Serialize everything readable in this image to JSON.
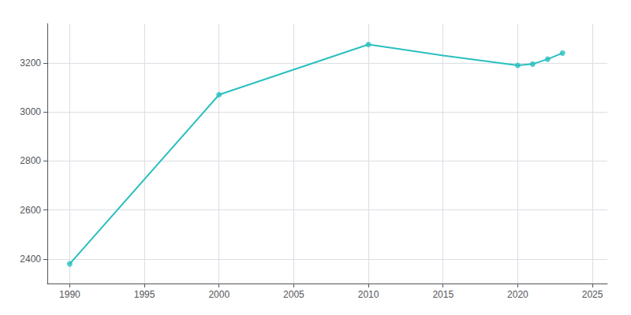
{
  "chart_data": {
    "type": "line",
    "series": [
      {
        "type": "line",
        "color": "#2abfbf",
        "x": [
          1990,
          2000,
          2010,
          2015,
          2020,
          2021,
          2022,
          2023
        ],
        "values": [
          2380,
          3070,
          3275,
          3230,
          3190,
          3195,
          3215,
          3240
        ]
      },
      {
        "type": "scatter",
        "color": "#2abfbf",
        "marker": "circle",
        "x": [
          1990,
          2000,
          2010,
          2020,
          2021,
          2022,
          2023
        ],
        "values": [
          2380,
          3070,
          3275,
          3190,
          3195,
          3215,
          3240
        ]
      }
    ],
    "xlim": [
      1988.5,
      2026
    ],
    "xticks": [
      1990,
      1995,
      2000,
      2005,
      2010,
      2015,
      2020,
      2025
    ],
    "ylim": [
      2300,
      3360
    ],
    "yticks": [
      2400,
      2600,
      2800,
      3000,
      3200
    ],
    "grid": true
  }
}
